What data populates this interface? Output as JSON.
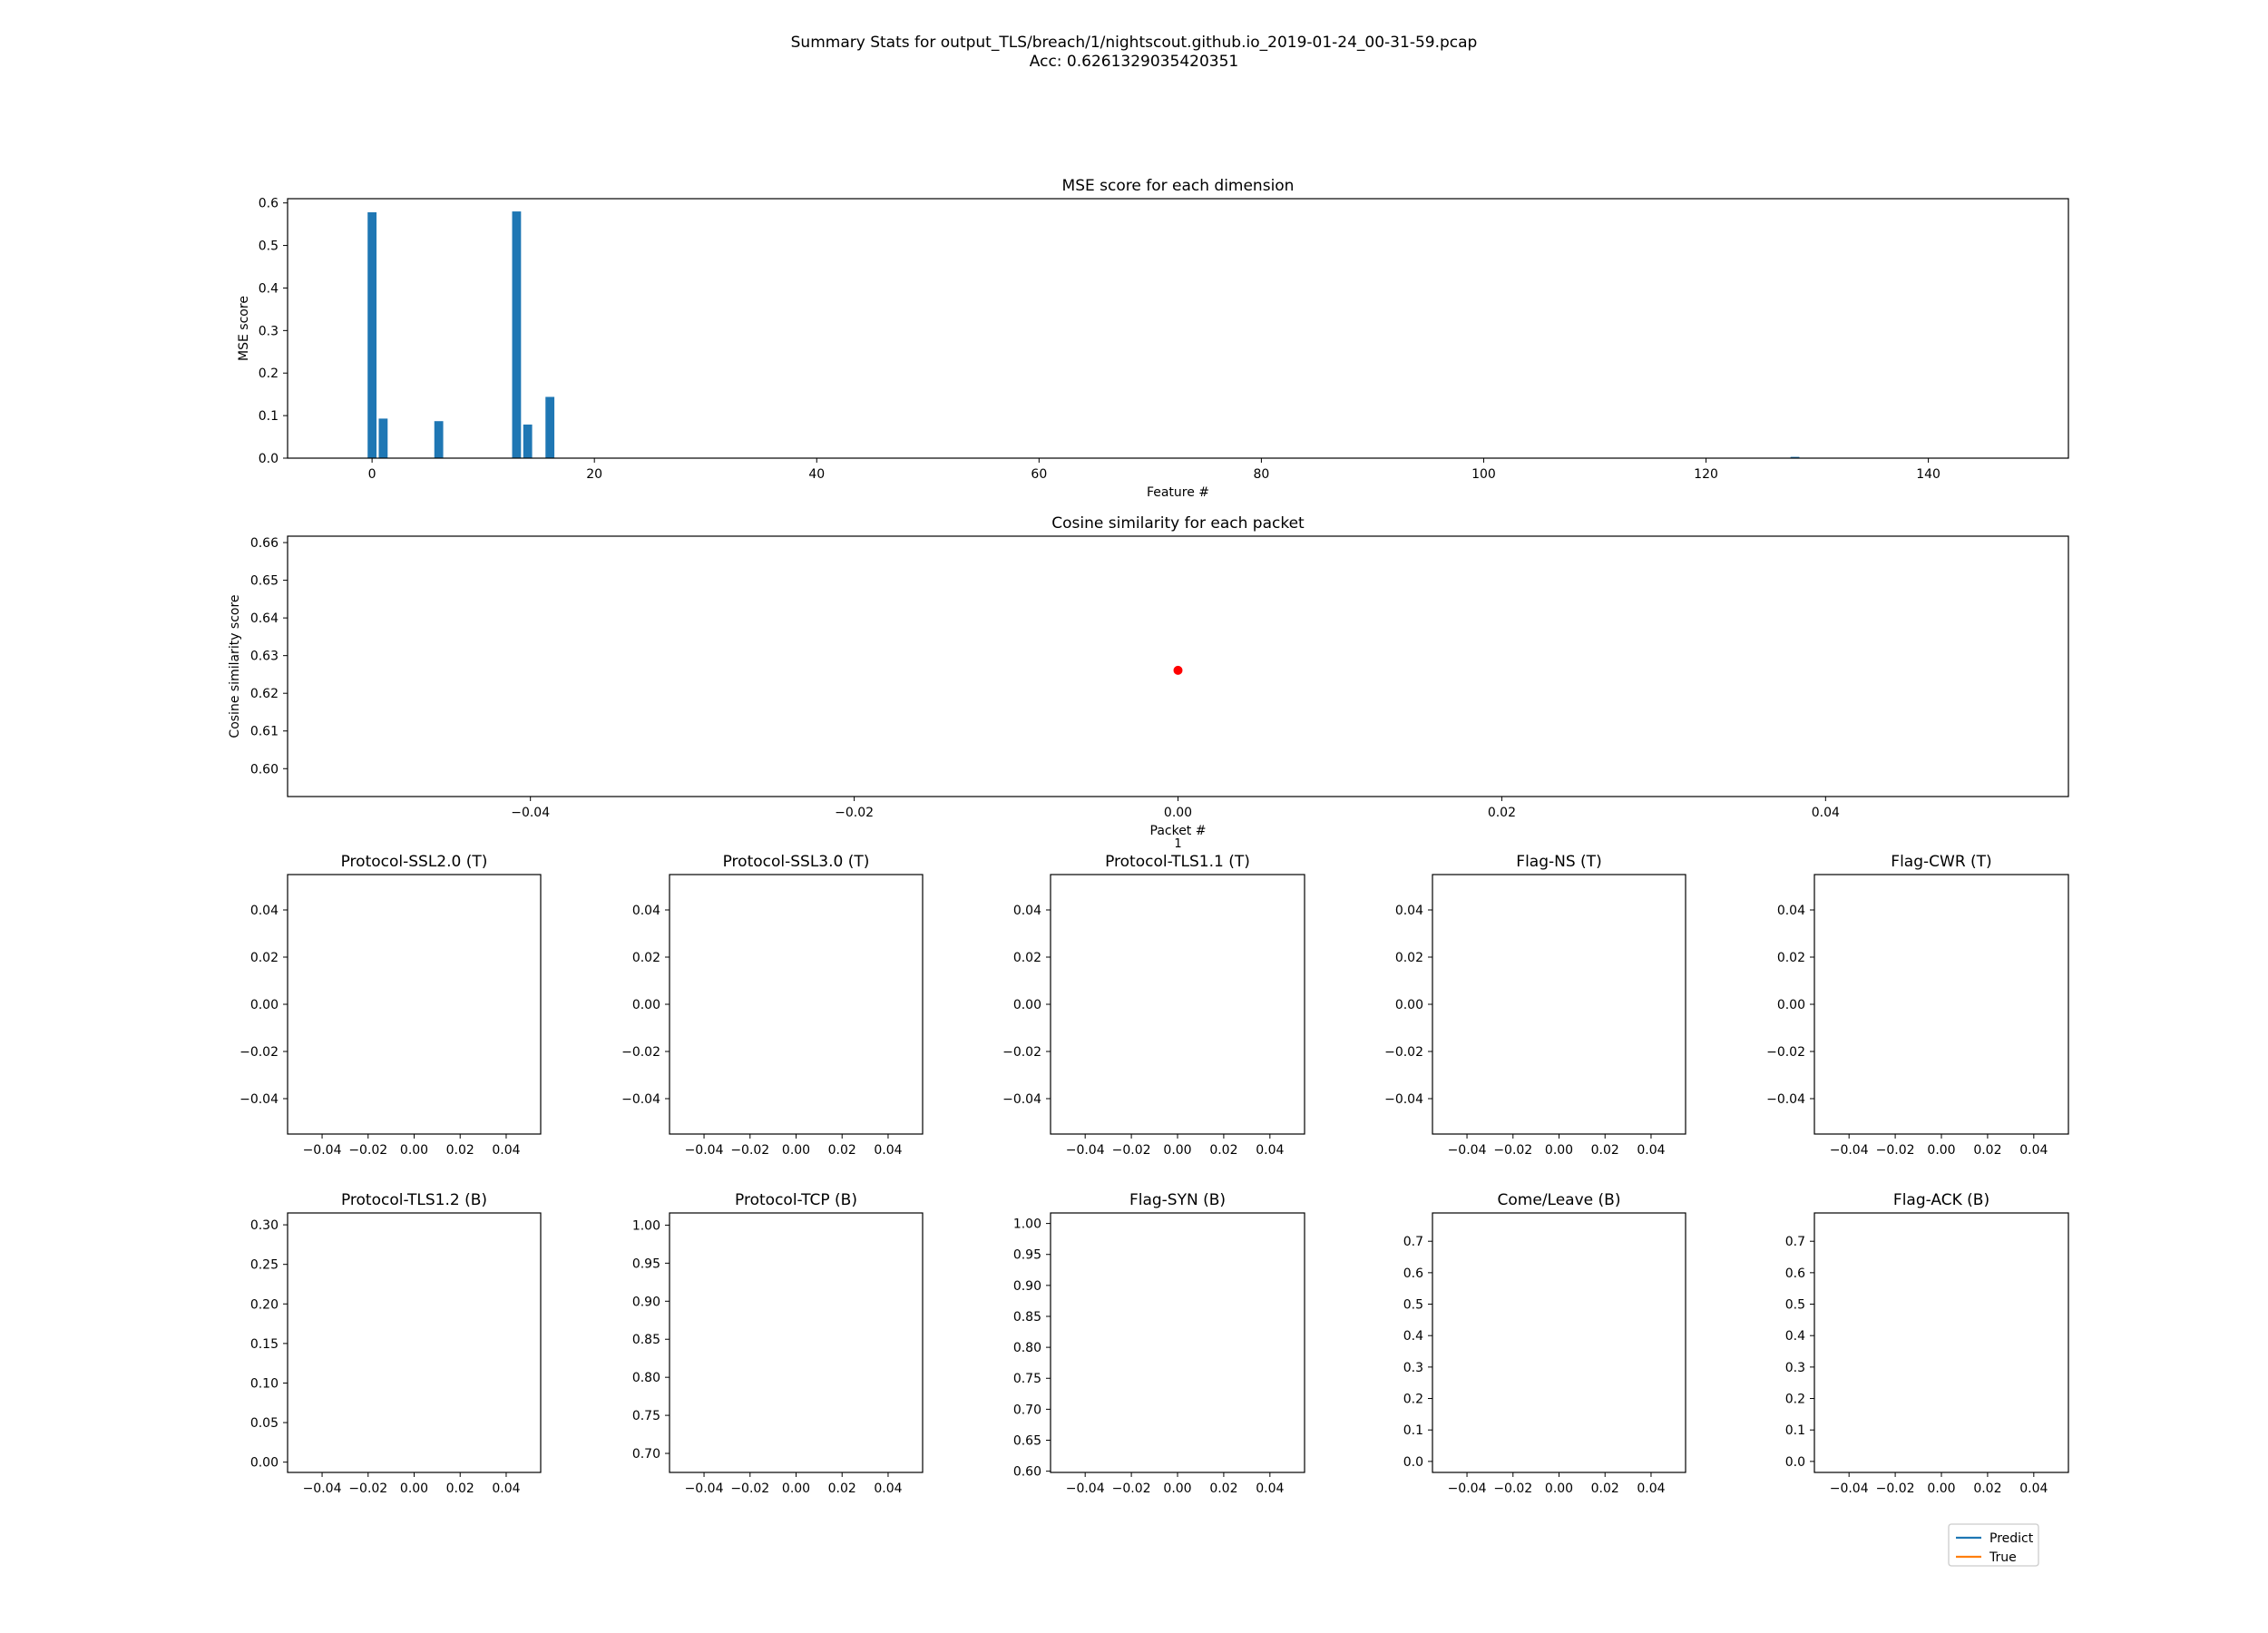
{
  "figure": {
    "title_line1": "Summary Stats for output_TLS/breach/1/nightscout.github.io_2019-01-24_00-31-59.pcap",
    "title_line2": "Acc: 0.6261329035420351"
  },
  "colors": {
    "bar": "#1f77b4",
    "point": "#ff0000",
    "predict": "#1f77b4",
    "true": "#ff7f0e"
  },
  "chart_data": [
    {
      "id": "mse",
      "type": "bar",
      "title": "MSE score for each dimension",
      "xlabel": "Feature #",
      "ylabel": "MSE score",
      "xlim": [
        -7.6,
        152.6
      ],
      "ylim": [
        0,
        0.61
      ],
      "xticks": [
        0,
        20,
        40,
        60,
        80,
        100,
        120,
        140
      ],
      "yticks": [
        0.0,
        0.1,
        0.2,
        0.3,
        0.4,
        0.5,
        0.6
      ],
      "ytick_labels": [
        "0.0",
        "0.1",
        "0.2",
        "0.3",
        "0.4",
        "0.5",
        "0.6"
      ],
      "bars": [
        {
          "x": 0,
          "y": 0.578
        },
        {
          "x": 1,
          "y": 0.093
        },
        {
          "x": 6,
          "y": 0.087
        },
        {
          "x": 13,
          "y": 0.58
        },
        {
          "x": 14,
          "y": 0.079
        },
        {
          "x": 16,
          "y": 0.144
        },
        {
          "x": 128,
          "y": 0.003
        }
      ]
    },
    {
      "id": "cos",
      "type": "scatter",
      "title": "Cosine similarity for each packet",
      "xlabel": "Packet #",
      "ylabel": "Cosine similarity score",
      "xlim": [
        -0.055,
        0.055
      ],
      "ylim": [
        0.5926,
        0.6617
      ],
      "xticks": [
        -0.04,
        -0.02,
        0.0,
        0.02,
        0.04
      ],
      "xtick_labels": [
        "−0.04",
        "−0.02",
        "0.00",
        "0.02",
        "0.04"
      ],
      "yticks": [
        0.6,
        0.61,
        0.62,
        0.63,
        0.64,
        0.65,
        0.66
      ],
      "ytick_labels": [
        "0.60",
        "0.61",
        "0.62",
        "0.63",
        "0.64",
        "0.65",
        "0.66"
      ],
      "points": [
        {
          "x": 0.0,
          "y": 0.6261
        }
      ],
      "extra_label": "1"
    },
    {
      "id": "ssl20",
      "type": "line",
      "title": "Protocol-SSL2.0 (T)",
      "xlim": [
        -0.055,
        0.055
      ],
      "ylim": [
        -0.055,
        0.055
      ],
      "xticks": [
        -0.04,
        -0.02,
        0.0,
        0.02,
        0.04
      ],
      "xtick_labels": [
        "−0.04",
        "−0.02",
        "0.00",
        "0.02",
        "0.04"
      ],
      "yticks": [
        -0.04,
        -0.02,
        0.0,
        0.02,
        0.04
      ],
      "ytick_labels": [
        "−0.04",
        "−0.02",
        "0.00",
        "0.02",
        "0.04"
      ],
      "series": []
    },
    {
      "id": "ssl30",
      "type": "line",
      "title": "Protocol-SSL3.0 (T)",
      "xlim": [
        -0.055,
        0.055
      ],
      "ylim": [
        -0.055,
        0.055
      ],
      "xticks": [
        -0.04,
        -0.02,
        0.0,
        0.02,
        0.04
      ],
      "xtick_labels": [
        "−0.04",
        "−0.02",
        "0.00",
        "0.02",
        "0.04"
      ],
      "yticks": [
        -0.04,
        -0.02,
        0.0,
        0.02,
        0.04
      ],
      "ytick_labels": [
        "−0.04",
        "−0.02",
        "0.00",
        "0.02",
        "0.04"
      ],
      "series": []
    },
    {
      "id": "tls11",
      "type": "line",
      "title": "Protocol-TLS1.1 (T)",
      "xlim": [
        -0.055,
        0.055
      ],
      "ylim": [
        -0.055,
        0.055
      ],
      "xticks": [
        -0.04,
        -0.02,
        0.0,
        0.02,
        0.04
      ],
      "xtick_labels": [
        "−0.04",
        "−0.02",
        "0.00",
        "0.02",
        "0.04"
      ],
      "yticks": [
        -0.04,
        -0.02,
        0.0,
        0.02,
        0.04
      ],
      "ytick_labels": [
        "−0.04",
        "−0.02",
        "0.00",
        "0.02",
        "0.04"
      ],
      "series": []
    },
    {
      "id": "flagns",
      "type": "line",
      "title": "Flag-NS (T)",
      "xlim": [
        -0.055,
        0.055
      ],
      "ylim": [
        -0.055,
        0.055
      ],
      "xticks": [
        -0.04,
        -0.02,
        0.0,
        0.02,
        0.04
      ],
      "xtick_labels": [
        "−0.04",
        "−0.02",
        "0.00",
        "0.02",
        "0.04"
      ],
      "yticks": [
        -0.04,
        -0.02,
        0.0,
        0.02,
        0.04
      ],
      "ytick_labels": [
        "−0.04",
        "−0.02",
        "0.00",
        "0.02",
        "0.04"
      ],
      "series": []
    },
    {
      "id": "flagcwr",
      "type": "line",
      "title": "Flag-CWR (T)",
      "xlim": [
        -0.055,
        0.055
      ],
      "ylim": [
        -0.055,
        0.055
      ],
      "xticks": [
        -0.04,
        -0.02,
        0.0,
        0.02,
        0.04
      ],
      "xtick_labels": [
        "−0.04",
        "−0.02",
        "0.00",
        "0.02",
        "0.04"
      ],
      "yticks": [
        -0.04,
        -0.02,
        0.0,
        0.02,
        0.04
      ],
      "ytick_labels": [
        "−0.04",
        "−0.02",
        "0.00",
        "0.02",
        "0.04"
      ],
      "series": []
    },
    {
      "id": "tls12",
      "type": "line",
      "title": "Protocol-TLS1.2 (B)",
      "xlim": [
        -0.055,
        0.055
      ],
      "ylim": [
        -0.013,
        0.315
      ],
      "xticks": [
        -0.04,
        -0.02,
        0.0,
        0.02,
        0.04
      ],
      "xtick_labels": [
        "−0.04",
        "−0.02",
        "0.00",
        "0.02",
        "0.04"
      ],
      "yticks": [
        0.0,
        0.05,
        0.1,
        0.15,
        0.2,
        0.25,
        0.3
      ],
      "ytick_labels": [
        "0.00",
        "0.05",
        "0.10",
        "0.15",
        "0.20",
        "0.25",
        "0.30"
      ],
      "series": []
    },
    {
      "id": "tcp",
      "type": "line",
      "title": "Protocol-TCP (B)",
      "xlim": [
        -0.055,
        0.055
      ],
      "ylim": [
        0.675,
        1.016
      ],
      "xticks": [
        -0.04,
        -0.02,
        0.0,
        0.02,
        0.04
      ],
      "xtick_labels": [
        "−0.04",
        "−0.02",
        "0.00",
        "0.02",
        "0.04"
      ],
      "yticks": [
        0.7,
        0.75,
        0.8,
        0.85,
        0.9,
        0.95,
        1.0
      ],
      "ytick_labels": [
        "0.70",
        "0.75",
        "0.80",
        "0.85",
        "0.90",
        "0.95",
        "1.00"
      ],
      "series": []
    },
    {
      "id": "syn",
      "type": "line",
      "title": "Flag-SYN (B)",
      "xlim": [
        -0.055,
        0.055
      ],
      "ylim": [
        0.598,
        1.017
      ],
      "xticks": [
        -0.04,
        -0.02,
        0.0,
        0.02,
        0.04
      ],
      "xtick_labels": [
        "−0.04",
        "−0.02",
        "0.00",
        "0.02",
        "0.04"
      ],
      "yticks": [
        0.6,
        0.65,
        0.7,
        0.75,
        0.8,
        0.85,
        0.9,
        0.95,
        1.0
      ],
      "ytick_labels": [
        "0.60",
        "0.65",
        "0.70",
        "0.75",
        "0.80",
        "0.85",
        "0.90",
        "0.95",
        "1.00"
      ],
      "series": []
    },
    {
      "id": "come",
      "type": "line",
      "title": "Come/Leave (B)",
      "xlim": [
        -0.055,
        0.055
      ],
      "ylim": [
        -0.035,
        0.79
      ],
      "xticks": [
        -0.04,
        -0.02,
        0.0,
        0.02,
        0.04
      ],
      "xtick_labels": [
        "−0.04",
        "−0.02",
        "0.00",
        "0.02",
        "0.04"
      ],
      "yticks": [
        0.0,
        0.1,
        0.2,
        0.3,
        0.4,
        0.5,
        0.6,
        0.7
      ],
      "ytick_labels": [
        "0.0",
        "0.1",
        "0.2",
        "0.3",
        "0.4",
        "0.5",
        "0.6",
        "0.7"
      ],
      "series": []
    },
    {
      "id": "ack",
      "type": "line",
      "title": "Flag-ACK (B)",
      "xlim": [
        -0.055,
        0.055
      ],
      "ylim": [
        -0.035,
        0.79
      ],
      "xticks": [
        -0.04,
        -0.02,
        0.0,
        0.02,
        0.04
      ],
      "xtick_labels": [
        "−0.04",
        "−0.02",
        "0.00",
        "0.02",
        "0.04"
      ],
      "yticks": [
        0.0,
        0.1,
        0.2,
        0.3,
        0.4,
        0.5,
        0.6,
        0.7
      ],
      "ytick_labels": [
        "0.0",
        "0.1",
        "0.2",
        "0.3",
        "0.4",
        "0.5",
        "0.6",
        "0.7"
      ],
      "series": []
    }
  ],
  "legend": {
    "position": "lower-right",
    "entries": [
      {
        "label": "Predict"
      },
      {
        "label": "True"
      }
    ]
  }
}
